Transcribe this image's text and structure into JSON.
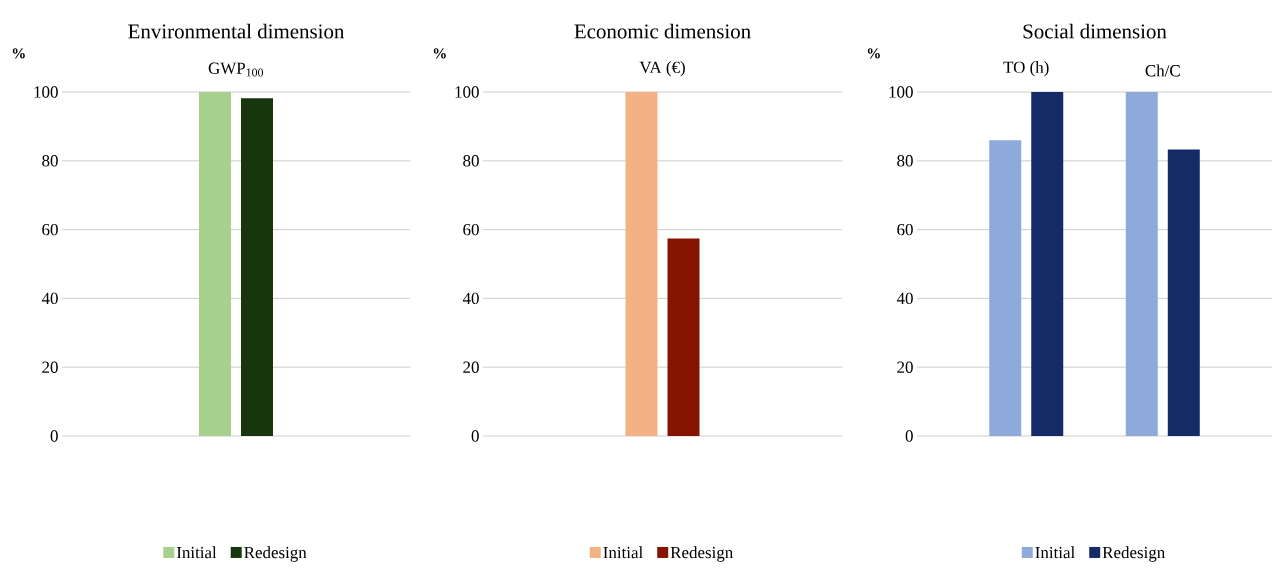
{
  "chart_data": [
    {
      "type": "bar",
      "title": "Environmental dimension",
      "ylabel": "%",
      "categories": [
        "GWP$_{100}$"
      ],
      "ylim": [
        0,
        100
      ],
      "yticks": [
        0,
        20,
        40,
        60,
        80,
        100
      ],
      "grid": "y",
      "legend": "bottom",
      "series": [
        {
          "name": "Initial",
          "color": "#a8d08d",
          "values": [
            100
          ]
        },
        {
          "name": "Redesign",
          "color": "#17360d",
          "values": [
            98.2
          ]
        }
      ]
    },
    {
      "type": "bar",
      "title": "Economic dimension",
      "ylabel": "%",
      "categories": [
        "VA (€)"
      ],
      "ylim": [
        0,
        100
      ],
      "yticks": [
        0,
        20,
        40,
        60,
        80,
        100
      ],
      "grid": "y",
      "legend": "bottom",
      "series": [
        {
          "name": "Initial",
          "color": "#f4b183",
          "values": [
            100
          ]
        },
        {
          "name": "Redesign",
          "color": "#841400",
          "values": [
            57.4
          ]
        }
      ]
    },
    {
      "type": "bar",
      "title": "Social dimension",
      "ylabel": "%",
      "categories": [
        "TO (h)",
        "Ch/C"
      ],
      "ylim": [
        0,
        100
      ],
      "yticks": [
        0,
        20,
        40,
        60,
        80,
        100
      ],
      "grid": "y",
      "legend": "bottom",
      "series": [
        {
          "name": "Initial",
          "color": "#8eaadb",
          "values": [
            86.0,
            100
          ]
        },
        {
          "name": "Redesign",
          "color": "#152b68",
          "values": [
            100,
            83.3
          ]
        }
      ]
    }
  ]
}
